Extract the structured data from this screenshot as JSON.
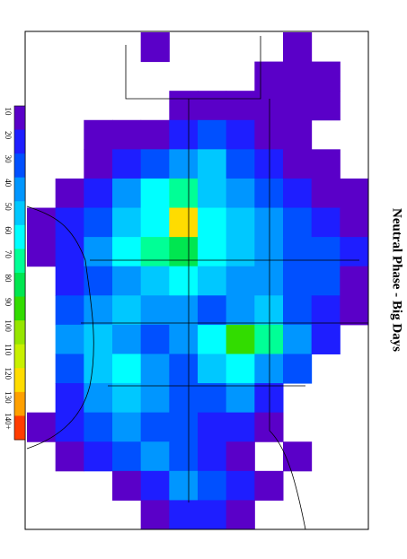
{
  "title": "Neutral Phase - Big Days",
  "legend": {
    "ticks": [
      10,
      20,
      30,
      40,
      50,
      60,
      70,
      80,
      90,
      100,
      110,
      120,
      130,
      {
        "value": 140,
        "label": "140+"
      }
    ],
    "colors": [
      "#5a00c8",
      "#1e1eff",
      "#0050ff",
      "#0096ff",
      "#00c8ff",
      "#00ffff",
      "#00ff96",
      "#00e650",
      "#32dc00",
      "#96e600",
      "#c8f000",
      "#ffdc00",
      "#ffa000",
      "#ff3c00"
    ]
  },
  "grid": {
    "cells": [
      [
        null,
        null,
        null,
        null,
        10,
        null,
        null,
        null,
        null,
        10,
        null,
        null
      ],
      [
        null,
        null,
        null,
        null,
        null,
        null,
        null,
        null,
        10,
        10,
        10,
        null
      ],
      [
        null,
        null,
        null,
        null,
        null,
        10,
        10,
        10,
        10,
        10,
        10,
        null
      ],
      [
        null,
        null,
        10,
        10,
        10,
        20,
        30,
        20,
        10,
        10,
        null,
        null
      ],
      [
        null,
        null,
        10,
        20,
        30,
        40,
        50,
        30,
        20,
        10,
        10,
        null
      ],
      [
        null,
        10,
        20,
        40,
        60,
        70,
        50,
        40,
        30,
        20,
        10,
        10
      ],
      [
        10,
        20,
        30,
        50,
        60,
        120,
        60,
        50,
        40,
        30,
        20,
        10
      ],
      [
        10,
        20,
        40,
        60,
        70,
        80,
        60,
        50,
        40,
        30,
        30,
        20
      ],
      [
        null,
        20,
        30,
        40,
        50,
        60,
        50,
        40,
        40,
        30,
        30,
        10
      ],
      [
        null,
        30,
        40,
        50,
        40,
        40,
        30,
        40,
        50,
        30,
        20,
        10
      ],
      [
        null,
        40,
        50,
        40,
        30,
        40,
        60,
        90,
        70,
        40,
        20,
        null
      ],
      [
        null,
        30,
        50,
        60,
        40,
        30,
        50,
        60,
        40,
        30,
        null,
        null
      ],
      [
        null,
        20,
        40,
        50,
        40,
        30,
        30,
        40,
        20,
        null,
        null,
        null
      ],
      [
        10,
        20,
        30,
        40,
        30,
        30,
        20,
        20,
        10,
        null,
        null,
        null
      ],
      [
        null,
        10,
        20,
        30,
        40,
        30,
        20,
        10,
        null,
        10,
        null,
        null
      ],
      [
        null,
        null,
        null,
        10,
        20,
        40,
        30,
        20,
        10,
        null,
        null,
        null
      ],
      [
        null,
        null,
        null,
        null,
        10,
        20,
        20,
        10,
        null,
        null,
        null,
        null
      ]
    ]
  }
}
